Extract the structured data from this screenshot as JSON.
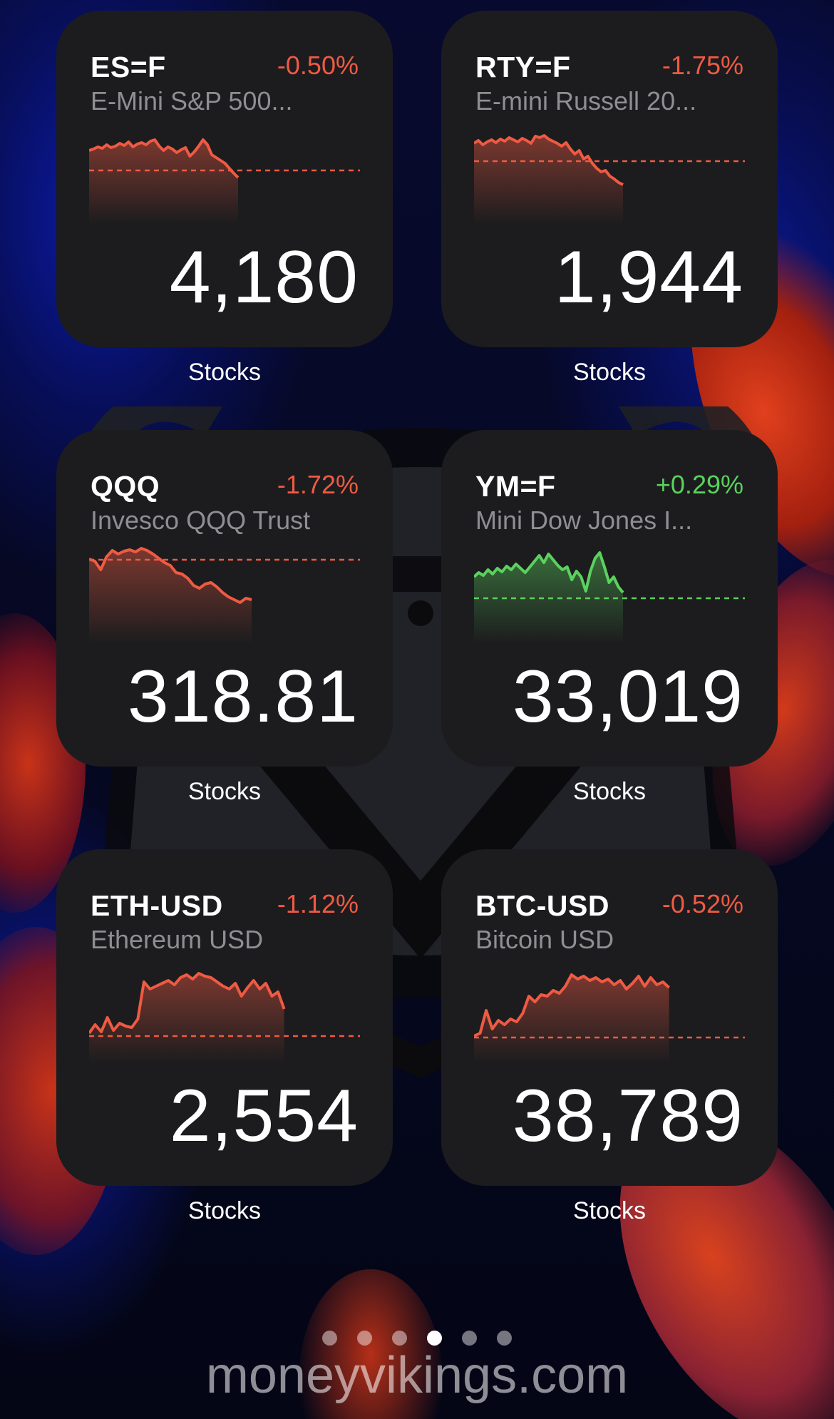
{
  "widgets": [
    {
      "ticker": "ES=F",
      "name": "E-Mini S&P 500...",
      "change": "-0.50%",
      "trend": "neg",
      "price": "4,180",
      "app_label": "Stocks",
      "spark": {
        "baseline": 58,
        "count": 0.55,
        "points": [
          30,
          28,
          25,
          27,
          22,
          26,
          24,
          20,
          23,
          18,
          25,
          21,
          19,
          22,
          17,
          15,
          24,
          30,
          25,
          28,
          33,
          29,
          26,
          38,
          32,
          24,
          15,
          22,
          36,
          40,
          44,
          48,
          55,
          62,
          68
        ]
      }
    },
    {
      "ticker": "RTY=F",
      "name": "E-mini Russell 20...",
      "change": "-1.75%",
      "trend": "neg",
      "price": "1,944",
      "app_label": "Stocks",
      "spark": {
        "baseline": 45,
        "count": 0.55,
        "points": [
          20,
          16,
          22,
          18,
          15,
          19,
          14,
          17,
          12,
          15,
          18,
          13,
          16,
          20,
          10,
          12,
          9,
          14,
          17,
          20,
          24,
          19,
          28,
          35,
          30,
          42,
          38,
          48,
          55,
          60,
          58,
          66,
          70,
          75,
          78
        ]
      }
    },
    {
      "ticker": "QQQ",
      "name": "Invesco QQQ Trust",
      "change": "-1.72%",
      "trend": "neg",
      "price": "318.81",
      "app_label": "Stocks",
      "spark": {
        "baseline": 16,
        "count": 0.6,
        "points": [
          15,
          18,
          30,
          12,
          3,
          8,
          4,
          2,
          5,
          0,
          3,
          8,
          14,
          20,
          24,
          34,
          36,
          42,
          52,
          56,
          50,
          48,
          54,
          62,
          68,
          72,
          76,
          70,
          72
        ]
      }
    },
    {
      "ticker": "YM=F",
      "name": "Mini Dow Jones I...",
      "change": "+0.29%",
      "trend": "pos",
      "price": "33,019",
      "app_label": "Stocks",
      "spark": {
        "baseline": 70,
        "count": 0.55,
        "points": [
          40,
          34,
          38,
          30,
          36,
          28,
          33,
          25,
          30,
          22,
          28,
          34,
          26,
          18,
          10,
          20,
          8,
          16,
          24,
          30,
          26,
          44,
          32,
          40,
          60,
          32,
          14,
          6,
          26,
          48,
          40,
          54,
          62
        ]
      }
    },
    {
      "ticker": "ETH-USD",
      "name": "Ethereum USD",
      "change": "-1.12%",
      "trend": "neg",
      "price": "2,554",
      "app_label": "Stocks",
      "spark": {
        "baseline": 96,
        "count": 0.72,
        "points": [
          92,
          80,
          90,
          70,
          88,
          78,
          82,
          84,
          72,
          20,
          30,
          26,
          22,
          18,
          24,
          14,
          10,
          16,
          8,
          12,
          14,
          20,
          26,
          30,
          22,
          40,
          28,
          18,
          30,
          22,
          40,
          34,
          58
        ]
      }
    },
    {
      "ticker": "BTC-USD",
      "name": "Bitcoin USD",
      "change": "-0.52%",
      "trend": "neg",
      "price": "38,789",
      "app_label": "Stocks",
      "spark": {
        "baseline": 98,
        "count": 0.72,
        "points": [
          96,
          92,
          60,
          86,
          74,
          80,
          72,
          76,
          64,
          40,
          48,
          38,
          40,
          32,
          36,
          26,
          10,
          16,
          12,
          18,
          14,
          20,
          16,
          24,
          18,
          30,
          22,
          12,
          26,
          14,
          24,
          20,
          28
        ]
      }
    }
  ],
  "page_dots": {
    "count": 6,
    "active": 3
  },
  "watermark": "moneyvikings.com",
  "colors": {
    "negative": "#f05a43",
    "positive": "#5bd15e",
    "widget_bg": "#1c1c1e"
  }
}
